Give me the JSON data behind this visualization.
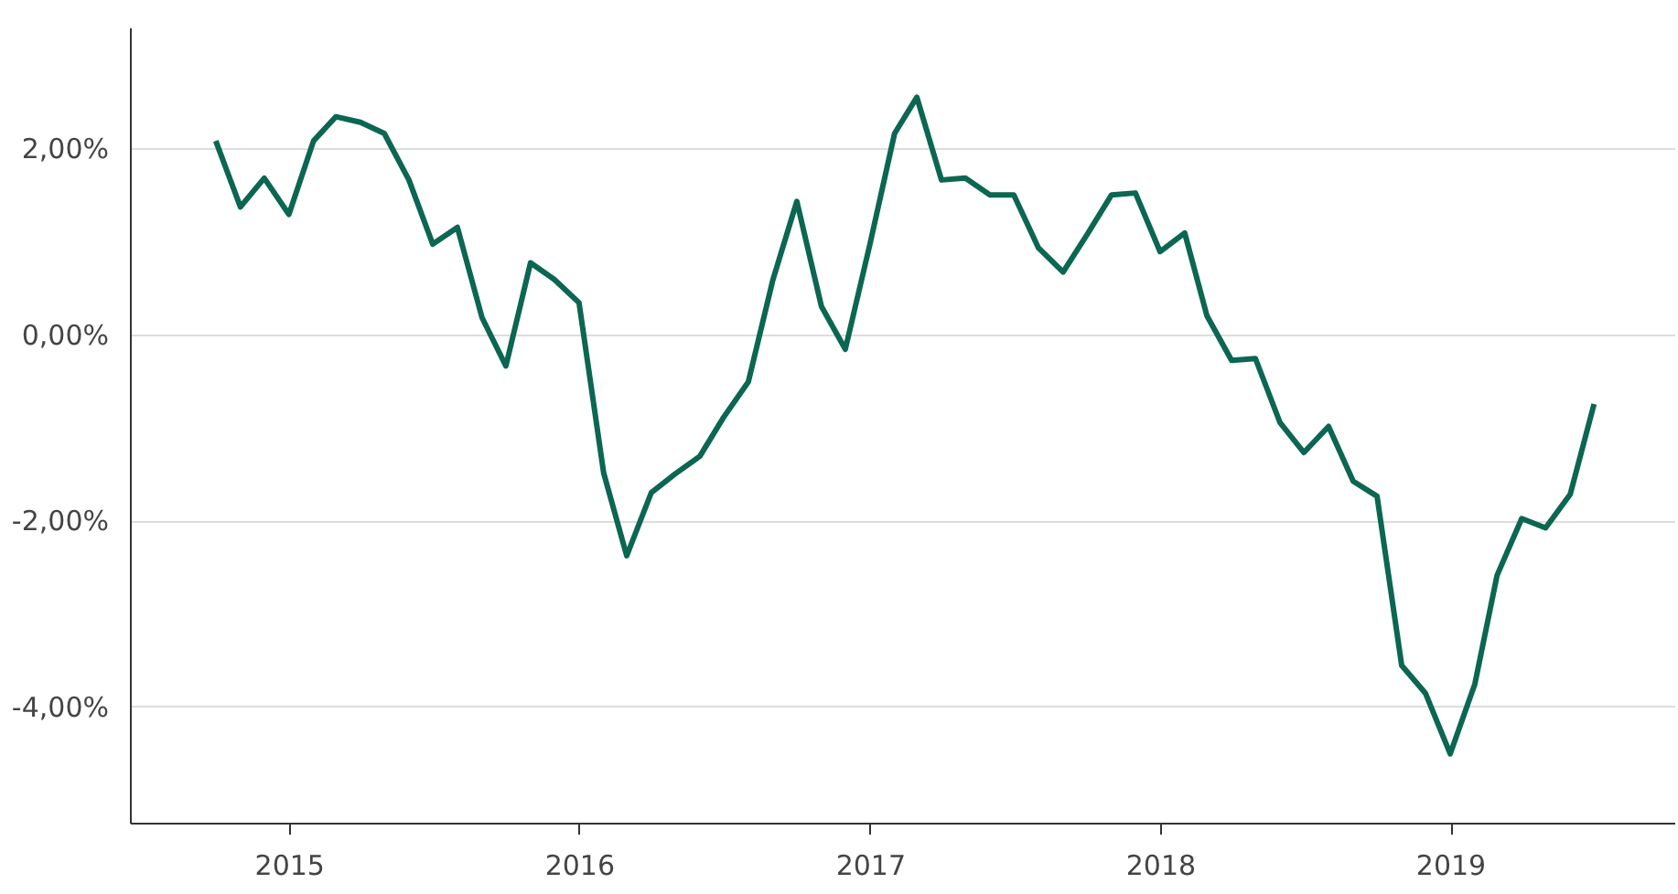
{
  "chart_data": {
    "type": "line",
    "x": [
      "2014-10",
      "2014-11",
      "2014-12",
      "2015-01",
      "2015-02",
      "2015-03",
      "2015-04",
      "2015-05",
      "2015-06",
      "2015-07",
      "2015-08",
      "2015-09",
      "2015-10",
      "2015-11",
      "2015-12",
      "2016-01",
      "2016-02",
      "2016-03",
      "2016-04",
      "2016-05",
      "2016-06",
      "2016-07",
      "2016-08",
      "2016-09",
      "2016-10",
      "2016-11",
      "2016-12",
      "2017-01",
      "2017-02",
      "2017-03",
      "2017-04",
      "2017-05",
      "2017-06",
      "2017-07",
      "2017-08",
      "2017-09",
      "2017-10",
      "2017-11",
      "2017-12",
      "2018-01",
      "2018-02",
      "2018-03",
      "2018-04",
      "2018-05",
      "2018-06",
      "2018-07",
      "2018-08",
      "2018-09",
      "2018-10",
      "2018-11",
      "2018-12",
      "2019-01",
      "2019-02",
      "2019-03",
      "2019-04",
      "2019-05",
      "2019-06",
      "2019-07"
    ],
    "series": [
      {
        "color": "#0b6652",
        "values": [
          2.08,
          1.37,
          1.68,
          1.29,
          2.08,
          2.34,
          2.28,
          2.16,
          1.66,
          0.97,
          1.15,
          0.18,
          -0.34,
          0.77,
          0.59,
          0.34,
          -1.49,
          -2.38,
          -1.7,
          -1.5,
          -1.31,
          -0.89,
          -0.51,
          0.59,
          1.43,
          0.3,
          -0.16,
          0.97,
          2.16,
          2.55,
          1.66,
          1.68,
          1.5,
          1.5,
          0.93,
          0.67,
          1.07,
          1.5,
          1.52,
          0.89,
          1.09,
          0.2,
          -0.28,
          -0.26,
          -0.95,
          -1.27,
          -0.99,
          -1.58,
          -1.74,
          -3.56,
          -3.86,
          -4.51,
          -3.76,
          -2.59,
          -1.98,
          -2.08,
          -1.72,
          -0.75
        ]
      }
    ],
    "xlim": [
      "2014-06-15",
      "2019-10-10"
    ],
    "xticks": [
      "2015",
      "2016",
      "2017",
      "2018",
      "2019"
    ],
    "ylim": [
      -5.25,
      3.3
    ],
    "yticks": [
      {
        "value": -4,
        "label": "-4,00%"
      },
      {
        "value": -2,
        "label": "-2,00%"
      },
      {
        "value": 0,
        "label": "0,00%"
      },
      {
        "value": 2,
        "label": "2,00%"
      }
    ],
    "grid": "y",
    "marker": "none",
    "line_style": "solid"
  }
}
